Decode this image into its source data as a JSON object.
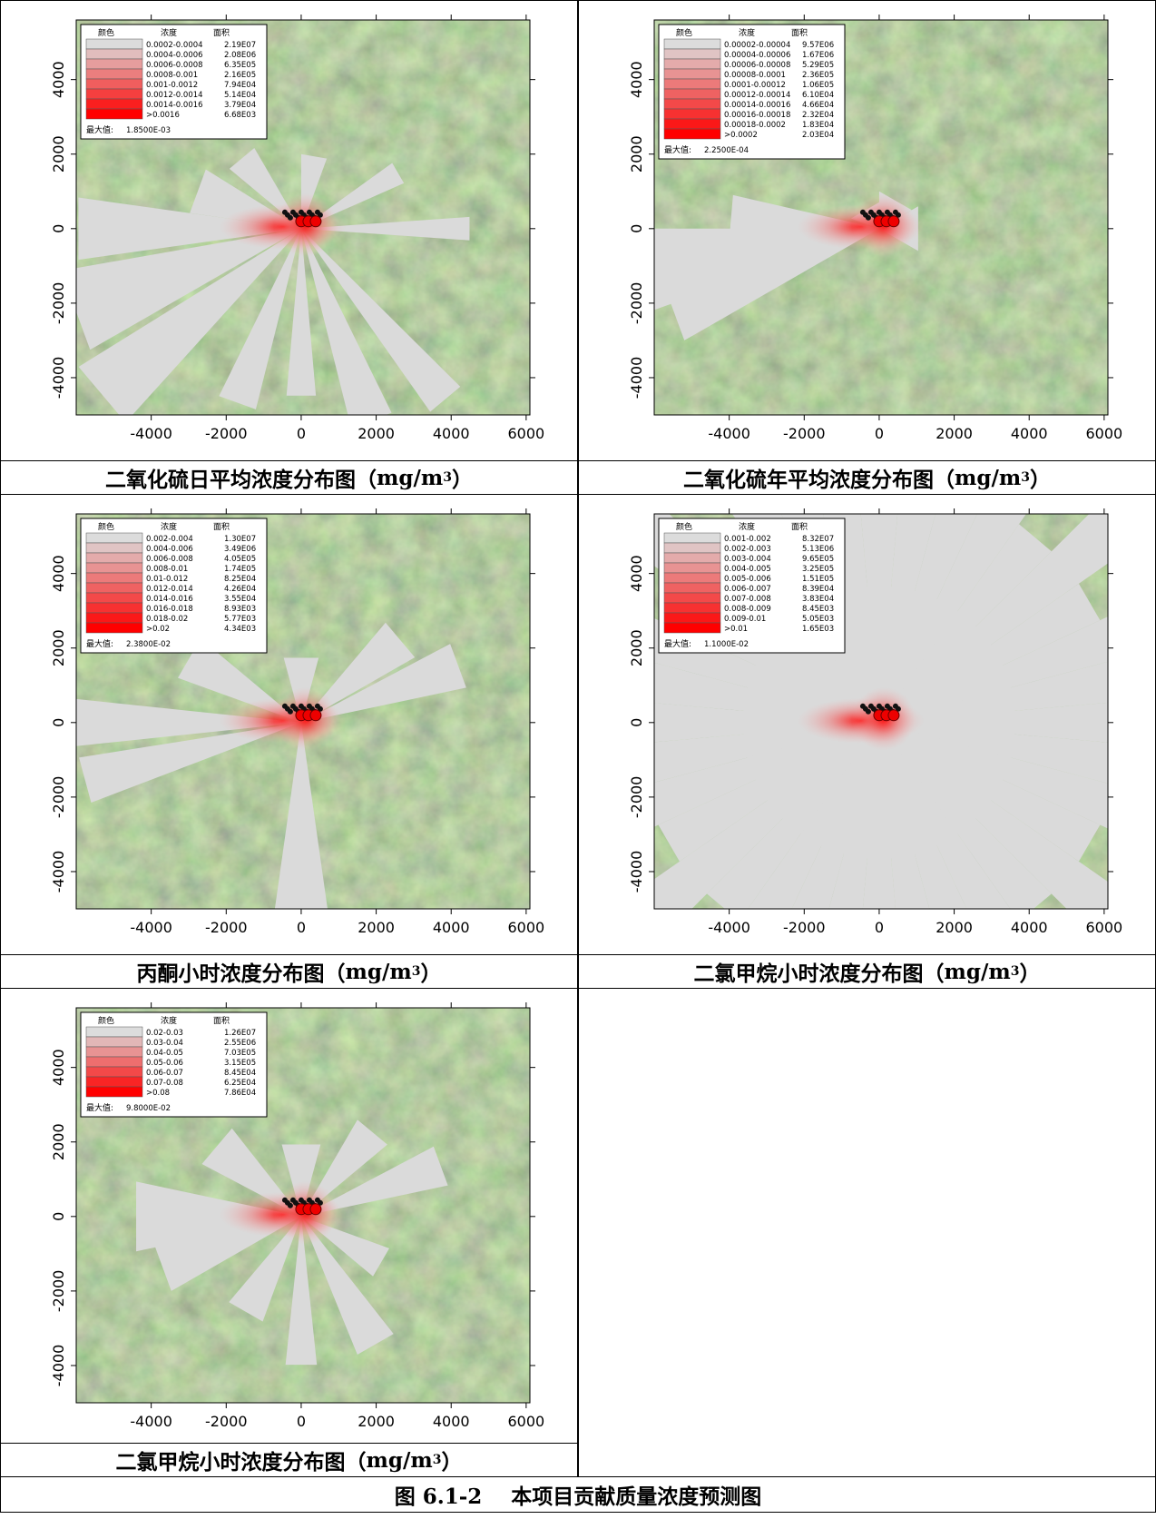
{
  "panels": [
    {
      "legend": {
        "header": [
          "颜色",
          "浓度",
          "面积"
        ],
        "rows": [
          [
            "0.0002-0.0004",
            "2.19E07"
          ],
          [
            "0.0004-0.0006",
            "2.08E06"
          ],
          [
            "0.0006-0.0008",
            "6.35E05"
          ],
          [
            "0.0008-0.001",
            "2.16E05"
          ],
          [
            "0.001-0.0012",
            "7.94E04"
          ],
          [
            "0.0012-0.0014",
            "5.14E04"
          ],
          [
            "0.0014-0.0016",
            "3.79E04"
          ],
          [
            ">0.0016",
            "6.68E03"
          ]
        ],
        "max_label": "最大值:",
        "max_value": "1.8500E-03"
      },
      "xlim": [
        -6000,
        6100
      ],
      "ylim": [
        -5000,
        5600
      ],
      "xticks": [
        -4000,
        -2000,
        0,
        2000,
        4000,
        6000
      ],
      "yticks": [
        -4000,
        -2000,
        0,
        2000,
        4000
      ],
      "caption": {
        "prefix": "二氧化硫日平均浓度分布图（",
        "unit": "mg/m",
        "exp": "3",
        "suffix": "）"
      }
    },
    {
      "legend": {
        "header": [
          "颜色",
          "浓度",
          "面积"
        ],
        "rows": [
          [
            "0.00002-0.00004",
            "9.57E06"
          ],
          [
            "0.00004-0.00006",
            "1.67E06"
          ],
          [
            "0.00006-0.00008",
            "5.29E05"
          ],
          [
            "0.00008-0.0001",
            "2.36E05"
          ],
          [
            "0.0001-0.00012",
            "1.06E05"
          ],
          [
            "0.00012-0.00014",
            "6.10E04"
          ],
          [
            "0.00014-0.00016",
            "4.66E04"
          ],
          [
            "0.00016-0.00018",
            "2.32E04"
          ],
          [
            "0.00018-0.0002",
            "1.83E04"
          ],
          [
            ">0.0002",
            "2.03E04"
          ]
        ],
        "max_label": "最大值:",
        "max_value": "2.2500E-04"
      },
      "xlim": [
        -6000,
        6100
      ],
      "ylim": [
        -5000,
        5600
      ],
      "xticks": [
        -4000,
        -2000,
        0,
        2000,
        4000,
        6000
      ],
      "yticks": [
        -4000,
        -2000,
        0,
        2000,
        4000
      ],
      "caption": {
        "prefix": "二氧化硫年平均浓度分布图（",
        "unit": "mg/m",
        "exp": "3",
        "suffix": "）"
      }
    },
    {
      "legend": {
        "header": [
          "颜色",
          "浓度",
          "面积"
        ],
        "rows": [
          [
            "0.002-0.004",
            "1.30E07"
          ],
          [
            "0.004-0.006",
            "3.49E06"
          ],
          [
            "0.006-0.008",
            "4.05E05"
          ],
          [
            "0.008-0.01",
            "1.74E05"
          ],
          [
            "0.01-0.012",
            "8.25E04"
          ],
          [
            "0.012-0.014",
            "4.26E04"
          ],
          [
            "0.014-0.016",
            "3.55E04"
          ],
          [
            "0.016-0.018",
            "8.93E03"
          ],
          [
            "0.018-0.02",
            "5.77E03"
          ],
          [
            ">0.02",
            "4.34E03"
          ]
        ],
        "max_label": "最大值:",
        "max_value": "2.3800E-02"
      },
      "xlim": [
        -6000,
        6100
      ],
      "ylim": [
        -5000,
        5600
      ],
      "xticks": [
        -4000,
        -2000,
        0,
        2000,
        4000,
        6000
      ],
      "yticks": [
        -4000,
        -2000,
        0,
        2000,
        4000
      ],
      "caption": {
        "prefix": "丙酮小时浓度分布图（",
        "unit": "mg/m",
        "exp": "3",
        "suffix": "）"
      }
    },
    {
      "legend": {
        "header": [
          "颜色",
          "浓度",
          "面积"
        ],
        "rows": [
          [
            "0.001-0.002",
            "8.32E07"
          ],
          [
            "0.002-0.003",
            "5.13E06"
          ],
          [
            "0.003-0.004",
            "9.65E05"
          ],
          [
            "0.004-0.005",
            "3.25E05"
          ],
          [
            "0.005-0.006",
            "1.51E05"
          ],
          [
            "0.006-0.007",
            "8.39E04"
          ],
          [
            "0.007-0.008",
            "3.83E04"
          ],
          [
            "0.008-0.009",
            "8.45E03"
          ],
          [
            "0.009-0.01",
            "5.05E03"
          ],
          [
            ">0.01",
            "1.65E03"
          ]
        ],
        "max_label": "最大值:",
        "max_value": "1.1000E-02"
      },
      "xlim": [
        -6000,
        6100
      ],
      "ylim": [
        -5000,
        5600
      ],
      "xticks": [
        -4000,
        -2000,
        0,
        2000,
        4000,
        6000
      ],
      "yticks": [
        -4000,
        -2000,
        0,
        2000,
        4000
      ],
      "caption": {
        "prefix": "二氯甲烷小时浓度分布图（",
        "unit": "mg/m",
        "exp": "3",
        "suffix": "）"
      }
    },
    {
      "legend": {
        "header": [
          "颜色",
          "浓度",
          "面积"
        ],
        "rows": [
          [
            "0.02-0.03",
            "1.26E07"
          ],
          [
            "0.03-0.04",
            "2.55E06"
          ],
          [
            "0.04-0.05",
            "7.03E05"
          ],
          [
            "0.05-0.06",
            "3.15E05"
          ],
          [
            "0.06-0.07",
            "8.45E04"
          ],
          [
            "0.07-0.08",
            "6.25E04"
          ],
          [
            ">0.08",
            "7.86E04"
          ]
        ],
        "max_label": "最大值:",
        "max_value": "9.8000E-02"
      },
      "xlim": [
        -6000,
        6100
      ],
      "ylim": [
        -5000,
        5600
      ],
      "xticks": [
        -4000,
        -2000,
        0,
        2000,
        4000,
        6000
      ],
      "yticks": [
        -4000,
        -2000,
        0,
        2000,
        4000
      ],
      "caption": {
        "prefix": "二氯甲烷小时浓度分布图（",
        "unit": "mg/m",
        "exp": "3",
        "suffix": "）"
      }
    }
  ],
  "figure_caption": {
    "number": "图 6.1-2",
    "title": "本项目贡献质量浓度预测图"
  }
}
